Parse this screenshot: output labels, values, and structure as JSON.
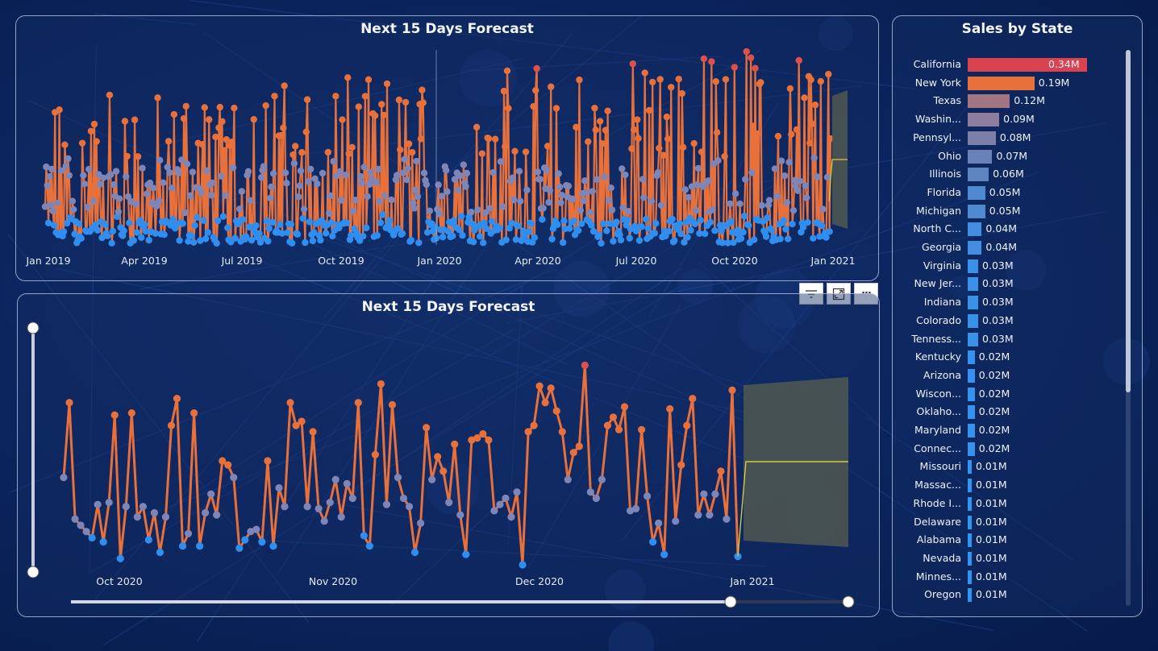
{
  "colors": {
    "high": "#e8703a",
    "low": "#2f8ef0",
    "mid": "#7e86b8",
    "peak": "#e0504a",
    "forecast_band": "#4c5552",
    "forecast_line": "#d8c93a",
    "axis_text": "#e6ebf5"
  },
  "top_panel": {
    "title": "Next 15 Days Forecast",
    "chart_data": {
      "type": "line",
      "title": "Next 15 Days Forecast",
      "x_ticks": [
        "Jan 2019",
        "Apr 2019",
        "Jul 2019",
        "Oct 2019",
        "Jan 2020",
        "Apr 2020",
        "Jul 2020",
        "Oct 2020",
        "Jan 2021"
      ],
      "x_range": [
        "2019-01-01",
        "2021-01-15"
      ],
      "y_range": [
        0,
        100
      ],
      "grid": false,
      "forecast": {
        "start": "2020-12-31",
        "end": "2021-01-15",
        "value": 42,
        "lower": 10,
        "upper": 82
      }
    }
  },
  "bottom_panel": {
    "title": "Next 15 Days Forecast",
    "chart_data": {
      "type": "line",
      "title": "Next 15 Days Forecast",
      "x_ticks": [
        "Oct 2020",
        "Nov 2020",
        "Dec 2020",
        "Jan 2021"
      ],
      "x_range": [
        "2020-09-24",
        "2021-01-15"
      ],
      "y_range": [
        0,
        100
      ],
      "grid": false,
      "values": [
        42,
        78,
        22,
        19,
        16,
        13,
        29,
        11,
        30,
        72,
        3,
        28,
        73,
        23,
        28,
        12,
        25,
        6,
        23,
        67,
        80,
        9,
        15,
        73,
        9,
        25,
        34,
        24,
        50,
        48,
        42,
        8,
        12,
        16,
        17,
        11,
        50,
        9,
        37,
        28,
        78,
        67,
        69,
        28,
        64,
        27,
        21,
        30,
        41,
        23,
        39,
        32,
        78,
        14,
        9,
        53,
        87,
        29,
        77,
        42,
        32,
        28,
        6,
        20,
        66,
        41,
        52,
        45,
        30,
        58,
        24,
        5,
        60,
        61,
        63,
        60,
        26,
        29,
        32,
        23,
        35,
        0,
        64,
        67,
        86,
        78,
        85,
        74,
        64,
        41,
        54,
        57,
        96,
        35,
        32,
        41,
        67,
        71,
        65,
        76,
        26,
        27,
        65,
        33,
        11,
        20,
        5,
        75,
        21,
        48,
        67,
        80,
        24,
        34,
        24,
        34,
        45,
        22,
        84,
        4
      ],
      "forecast": {
        "start": "2020-12-31",
        "end": "2021-01-15",
        "value": 52,
        "lower": 15,
        "upper": 90
      }
    }
  },
  "toolbar": {
    "filter_icon": "filter-icon",
    "focus_icon": "focus-mode-icon",
    "more_label": "···"
  },
  "right_panel": {
    "title": "Sales by State",
    "chart_data": {
      "type": "bar",
      "title": "Sales by State",
      "orientation": "horizontal",
      "categories": [
        "California",
        "New York",
        "Texas",
        "Washin...",
        "Pennsyl...",
        "Ohio",
        "Illinois",
        "Florida",
        "Michigan",
        "North C...",
        "Georgia",
        "Virginia",
        "New Jer...",
        "Indiana",
        "Colorado",
        "Tenness...",
        "Kentucky",
        "Arizona",
        "Wiscon...",
        "Oklaho...",
        "Maryland",
        "Connec...",
        "Missouri",
        "Massac...",
        "Rhode I...",
        "Delaware",
        "Alabama",
        "Nevada",
        "Minnes...",
        "Oregon"
      ],
      "values": [
        0.34,
        0.19,
        0.12,
        0.09,
        0.08,
        0.07,
        0.06,
        0.05,
        0.05,
        0.04,
        0.04,
        0.03,
        0.03,
        0.03,
        0.03,
        0.03,
        0.02,
        0.02,
        0.02,
        0.02,
        0.02,
        0.02,
        0.01,
        0.01,
        0.01,
        0.01,
        0.01,
        0.01,
        0.01,
        0.01
      ],
      "labels": [
        "0.34M",
        "0.19M",
        "0.12M",
        "0.09M",
        "0.08M",
        "0.07M",
        "0.06M",
        "0.05M",
        "0.05M",
        "0.04M",
        "0.04M",
        "0.03M",
        "0.03M",
        "0.03M",
        "0.03M",
        "0.03M",
        "0.02M",
        "0.02M",
        "0.02M",
        "0.02M",
        "0.02M",
        "0.02M",
        "0.01M",
        "0.01M",
        "0.01M",
        "0.01M",
        "0.01M",
        "0.01M",
        "0.01M",
        "0.01M"
      ],
      "bar_colors": [
        "#d9434f",
        "#e8703a",
        "#a27680",
        "#8c7e9c",
        "#7c7fa8",
        "#6a82b8",
        "#5e85c2",
        "#4f8ad0",
        "#4f8ad0",
        "#438ee0",
        "#438ee0",
        "#3a91e8",
        "#3a91e8",
        "#3a91e8",
        "#3a91e8",
        "#3a91e8",
        "#3393ee",
        "#3393ee",
        "#3393ee",
        "#3393ee",
        "#3393ee",
        "#3393ee",
        "#2f95f2",
        "#2f95f2",
        "#2f95f2",
        "#2f95f2",
        "#2f95f2",
        "#2f95f2",
        "#2f95f2",
        "#2f95f2"
      ],
      "xlim": [
        0,
        0.34
      ]
    }
  }
}
